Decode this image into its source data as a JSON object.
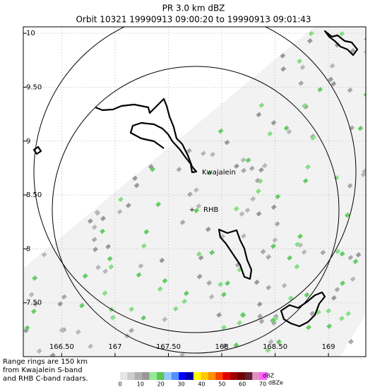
{
  "title": "PR  3.0 km dBZ",
  "subtitle": "Orbit 10321 19990913 09:00:20 to 19990913 09:01:43",
  "map": {
    "xlim": [
      166.14,
      169.35
    ],
    "ylim": [
      7.0,
      10.06
    ],
    "xticks": [
      {
        "value": 166.5,
        "label": "166.50"
      },
      167,
      {
        "value": 167.5,
        "label": "167.50"
      },
      168,
      {
        "value": 168.5,
        "label": "168.50"
      },
      169
    ],
    "yticks": [
      10,
      {
        "value": 9.5,
        "label": "9.50"
      },
      9,
      {
        "value": 8.5,
        "label": "8.50"
      },
      8,
      {
        "value": 7.5,
        "label": "7.50"
      }
    ],
    "places": [
      "Kwajalein",
      "RHB"
    ]
  },
  "note": [
    "Range rings are 150 km",
    "from Kwajalein S-band",
    "and RHB C-band radars."
  ],
  "colorbar": {
    "lim": [
      0,
      70
    ],
    "ticks": [
      0,
      10,
      20,
      30,
      40,
      50,
      60,
      70
    ],
    "units": [
      "dBZ",
      "dBZe"
    ],
    "colors": [
      "#e6e6e6",
      "#cccccc",
      "#b0b0b0",
      "#989898",
      "#98e898",
      "#58c858",
      "#98c8ff",
      "#5090ff",
      "#0000ff",
      "#0000a8",
      "#ffff00",
      "#ffc800",
      "#ff9000",
      "#ff4000",
      "#e00000",
      "#a00000",
      "#700000",
      "#602030",
      "#e090c0",
      "#ff60ff"
    ]
  }
}
